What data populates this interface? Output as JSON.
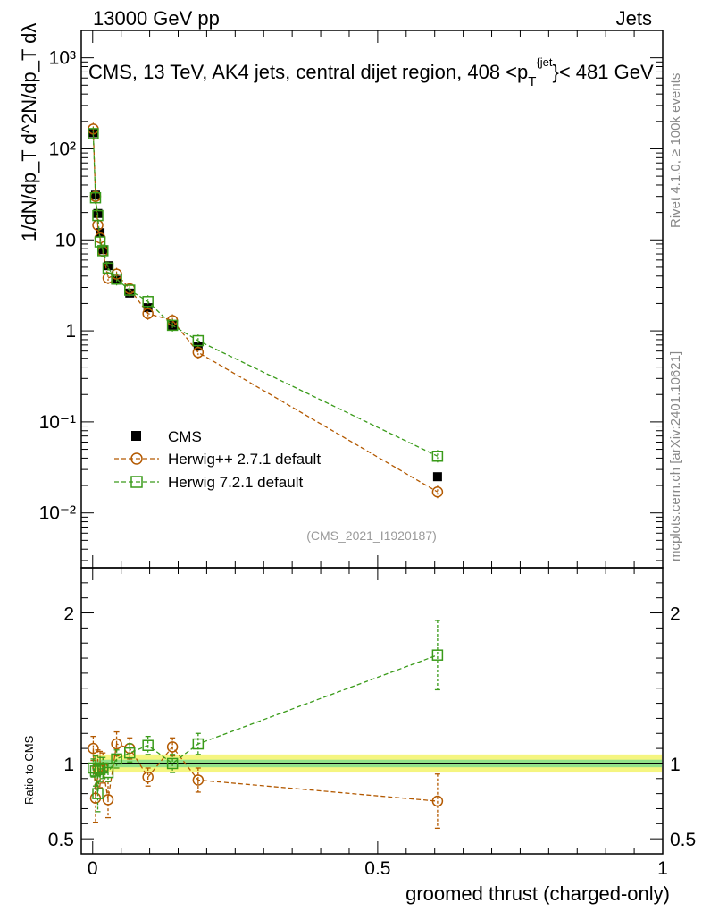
{
  "header": {
    "left": "13000 GeV pp",
    "right": "Jets",
    "side_top": "Rivet 4.1.0, ≥ 100k events",
    "side_bottom": "mcplots.cern.ch [arXiv:2401.10621]"
  },
  "chart_data": [
    {
      "type": "line",
      "panel": "main",
      "title": "CMS, 13 TeV, AK4 jets, central dijet region, 408 <p_T^{jet}< 481 GeV",
      "title_parts": {
        "pre": "CMS, 13 TeV, AK4 jets, central dijet region, 408 <p",
        "sub": "T",
        "sup": "{jet",
        "post": "}< 481 GeV"
      },
      "ylabel": "1/dN/dp_T d^2N/dp_T dλ",
      "yscale": "log",
      "ylim": [
        0.0025,
        2000
      ],
      "xlim": [
        -0.02,
        1.0
      ],
      "yticks": [
        {
          "value": 0.01,
          "label": "10⁻²"
        },
        {
          "value": 0.1,
          "label": "10⁻¹"
        },
        {
          "value": 1,
          "label": "1"
        },
        {
          "value": 10,
          "label": "10"
        },
        {
          "value": 100,
          "label": "10²"
        },
        {
          "value": 1000,
          "label": "10³"
        }
      ],
      "legend_position": "center-left",
      "series": [
        {
          "name": "CMS",
          "color": "#000000",
          "marker": "filled-square",
          "x": [
            0.001,
            0.005,
            0.009,
            0.013,
            0.018,
            0.027,
            0.042,
            0.065,
            0.097,
            0.14,
            0.185,
            0.605
          ],
          "y": [
            150,
            31,
            19.5,
            12.0,
            7.8,
            5.2,
            3.6,
            2.6,
            1.8,
            1.15,
            0.68,
            0.025
          ]
        },
        {
          "name": "Herwig++ 2.7.1 default",
          "color": "#b35900",
          "marker": "open-circle",
          "x": [
            0.001,
            0.005,
            0.009,
            0.013,
            0.018,
            0.027,
            0.042,
            0.065,
            0.097,
            0.14,
            0.185,
            0.605
          ],
          "y": [
            165,
            30,
            14.5,
            10.5,
            7.5,
            3.8,
            4.2,
            2.9,
            1.55,
            1.3,
            0.58,
            0.017
          ]
        },
        {
          "name": "Herwig 7.2.1 default",
          "color": "#3a9b1a",
          "marker": "open-square",
          "x": [
            0.001,
            0.005,
            0.009,
            0.013,
            0.018,
            0.027,
            0.042,
            0.065,
            0.097,
            0.14,
            0.185,
            0.605
          ],
          "y": [
            147,
            29,
            18.5,
            9.5,
            7.6,
            4.9,
            3.7,
            2.8,
            2.1,
            1.15,
            0.78,
            0.042
          ]
        }
      ],
      "annotation": "(CMS_2021_I1920187)"
    },
    {
      "type": "line",
      "panel": "ratio",
      "ylabel": "Ratio to CMS",
      "xlabel": "groomed thrust (charged-only)",
      "ylim": [
        0.4,
        2.3
      ],
      "xlim": [
        -0.02,
        1.0
      ],
      "yticks": [
        {
          "value": 0.5,
          "label": "0.5"
        },
        {
          "value": 1,
          "label": "1"
        },
        {
          "value": 2,
          "label": "2"
        }
      ],
      "xticks": [
        {
          "value": 0,
          "label": "0"
        },
        {
          "value": 0.5,
          "label": "0.5"
        },
        {
          "value": 1,
          "label": "1"
        }
      ],
      "series": [
        {
          "name": "Herwig++ 2.7.1 default",
          "color": "#b35900",
          "marker": "open-circle",
          "x": [
            0.001,
            0.005,
            0.009,
            0.013,
            0.018,
            0.027,
            0.042,
            0.065,
            0.097,
            0.14,
            0.185,
            0.605
          ],
          "y": [
            1.1,
            0.77,
            0.97,
            0.96,
            0.97,
            0.76,
            1.13,
            1.1,
            0.91,
            1.11,
            0.89,
            0.75
          ],
          "err": [
            0.08,
            0.16,
            0.12,
            0.12,
            0.1,
            0.12,
            0.08,
            0.07,
            0.06,
            0.06,
            0.08,
            0.18
          ]
        },
        {
          "name": "Herwig 7.2.1 default",
          "color": "#3a9b1a",
          "marker": "open-square",
          "x": [
            0.001,
            0.005,
            0.009,
            0.013,
            0.018,
            0.027,
            0.042,
            0.065,
            0.097,
            0.14,
            0.185,
            0.605
          ],
          "y": [
            0.97,
            0.95,
            0.8,
            0.96,
            0.97,
            0.94,
            1.03,
            1.07,
            1.12,
            1.0,
            1.13,
            1.72
          ],
          "err": [
            0.06,
            0.1,
            0.12,
            0.08,
            0.07,
            0.06,
            0.06,
            0.06,
            0.06,
            0.06,
            0.07,
            0.23
          ]
        }
      ],
      "band": {
        "inner": 0.025,
        "outer": 0.06,
        "inner_color": "#3fcf8f",
        "outer_color": "#f5f580"
      }
    }
  ]
}
